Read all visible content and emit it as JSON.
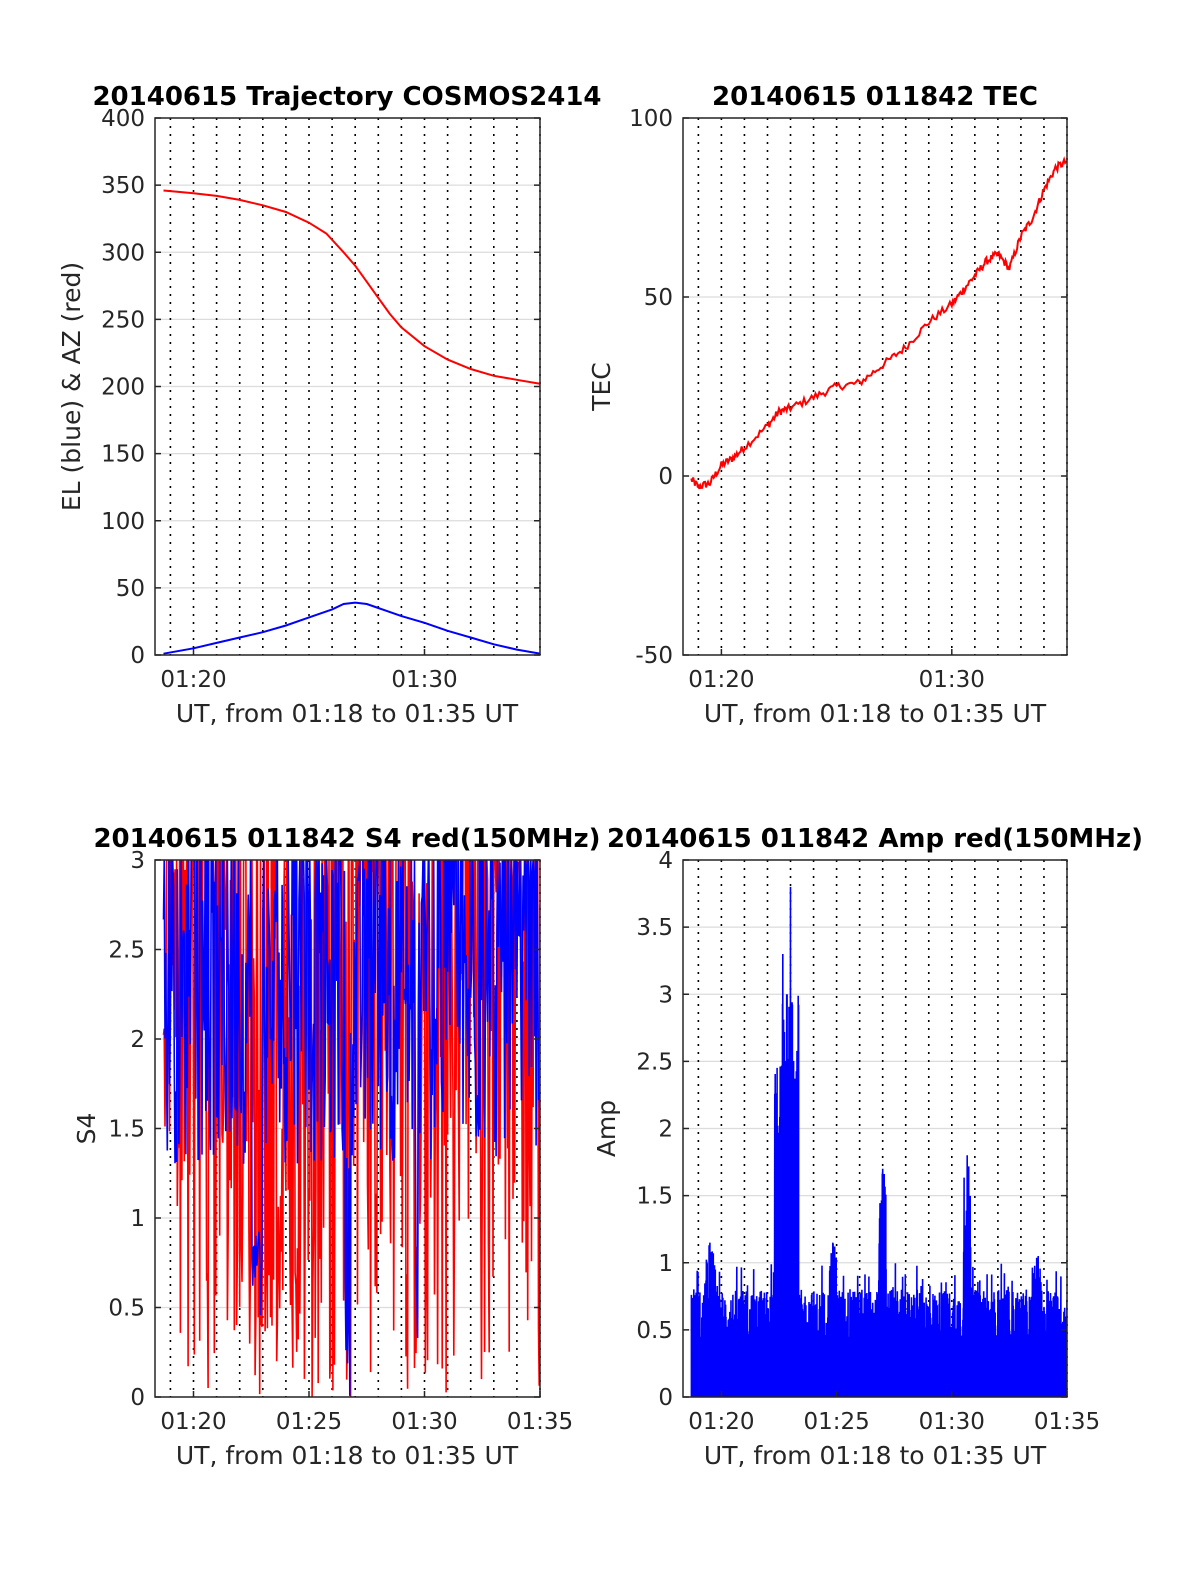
{
  "colors": {
    "red": "#ff0000",
    "blue": "#0000ff",
    "axis": "#262626",
    "grid": "#dcdcdc"
  },
  "chart_data": [
    {
      "type": "line",
      "title": "20140615 Trajectory COSMOS2414",
      "xlabel": "UT, from 01:18 to 01:35 UT",
      "ylabel": "EL (blue) & AZ (red)",
      "xlim": [
        "01:18:20",
        "01:35:00"
      ],
      "ylim": [
        0,
        400
      ],
      "xticks": [
        "01:20",
        "01:30"
      ],
      "yticks": [
        0,
        50,
        100,
        150,
        200,
        250,
        300,
        350,
        400
      ],
      "grid": "horizontal solid, vertical dotted every minute",
      "series": [
        {
          "color": "#ff0000",
          "x": [
            "01:18:42",
            "01:20:00",
            "01:21:00",
            "01:22:00",
            "01:23:00",
            "01:24:00",
            "01:25:00",
            "01:25:45",
            "01:26:30",
            "01:27:00",
            "01:27:30",
            "01:28:00",
            "01:28:30",
            "01:29:00",
            "01:30:00",
            "01:31:00",
            "01:32:00",
            "01:33:00",
            "01:34:00",
            "01:35:00"
          ],
          "y": [
            346,
            344,
            342,
            339,
            335,
            330,
            322,
            314,
            300,
            290,
            278,
            266,
            254,
            244,
            230,
            220,
            213,
            208,
            205,
            202
          ]
        },
        {
          "color": "#0000ff",
          "x": [
            "01:18:42",
            "01:20:00",
            "01:21:00",
            "01:22:00",
            "01:23:00",
            "01:24:00",
            "01:25:00",
            "01:26:00",
            "01:26:30",
            "01:27:00",
            "01:27:30",
            "01:28:00",
            "01:29:00",
            "01:30:00",
            "01:31:00",
            "01:32:00",
            "01:33:00",
            "01:34:00",
            "01:35:00"
          ],
          "y": [
            1,
            5,
            9,
            13,
            17,
            22,
            28,
            34,
            38,
            39,
            38,
            35,
            29,
            24,
            18,
            13,
            8,
            4,
            1
          ]
        }
      ]
    },
    {
      "type": "line",
      "title": "20140615 011842 TEC",
      "xlabel": "UT, from 01:18 to 01:35 UT",
      "ylabel": "TEC",
      "xlim": [
        "01:18:20",
        "01:35:00"
      ],
      "ylim": [
        -50,
        100
      ],
      "xticks": [
        "01:20",
        "01:30"
      ],
      "yticks": [
        -50,
        0,
        50,
        100
      ],
      "grid": "horizontal solid, vertical dotted every minute",
      "series": [
        {
          "color": "#ff0000",
          "x": [
            "01:18:42",
            "01:19:00",
            "01:19:30",
            "01:20:00",
            "01:20:30",
            "01:21:00",
            "01:22:00",
            "01:22:30",
            "01:23:00",
            "01:24:00",
            "01:25:00",
            "01:26:00",
            "01:27:00",
            "01:28:00",
            "01:29:00",
            "01:30:00",
            "01:30:30",
            "01:31:00",
            "01:31:30",
            "01:32:00",
            "01:32:30",
            "01:33:00",
            "01:33:30",
            "01:34:00",
            "01:34:30",
            "01:35:00"
          ],
          "y": [
            -1,
            -3,
            -2,
            3,
            5,
            8,
            14,
            18,
            19,
            22,
            25,
            26,
            31,
            36,
            43,
            48,
            52,
            56,
            60,
            62,
            58,
            67,
            72,
            80,
            86,
            88
          ]
        }
      ]
    },
    {
      "type": "line",
      "title": "20140615 011842 S4 red(150MHz)",
      "xlabel": "UT, from 01:18 to 01:35 UT",
      "ylabel": "S4",
      "xlim": [
        "01:18:20",
        "01:35:00"
      ],
      "ylim": [
        0,
        3
      ],
      "xticks": [
        "01:20",
        "01:25",
        "01:30",
        "01:35"
      ],
      "yticks": [
        0,
        0.5,
        1,
        1.5,
        2,
        2.5,
        3
      ],
      "grid": "horizontal solid, vertical dotted every minute",
      "series": [
        {
          "color": "#ff0000",
          "style": "dense noise, 0 to 3"
        },
        {
          "color": "#0000ff",
          "style": "dense noise mostly 1.2 to 3, dips near 01:22:40 and 01:26:40"
        }
      ]
    },
    {
      "type": "bar",
      "title": "20140615 011842 Amp red(150MHz)",
      "xlabel": "UT, from 01:18 to 01:35 UT",
      "ylabel": "Amp",
      "xlim": [
        "01:18:20",
        "01:35:00"
      ],
      "ylim": [
        0,
        4
      ],
      "xticks": [
        "01:20",
        "01:25",
        "01:30",
        "01:35"
      ],
      "yticks": [
        0,
        0.5,
        1,
        1.5,
        2,
        2.5,
        3,
        3.5,
        4
      ],
      "grid": "horizontal solid, vertical dotted every minute",
      "series": [
        {
          "color": "#0000ff",
          "baseline": 0.7,
          "peaks": [
            {
              "x": "01:22:40",
              "y": 3.3
            },
            {
              "x": "01:22:50",
              "y": 3.0
            },
            {
              "x": "01:23:00",
              "y": 3.8
            },
            {
              "x": "01:27:00",
              "y": 1.7
            },
            {
              "x": "01:30:40",
              "y": 1.8
            },
            {
              "x": "01:19:30",
              "y": 1.15
            },
            {
              "x": "01:24:50",
              "y": 1.15
            },
            {
              "x": "01:33:45",
              "y": 1.05
            }
          ]
        }
      ]
    }
  ]
}
